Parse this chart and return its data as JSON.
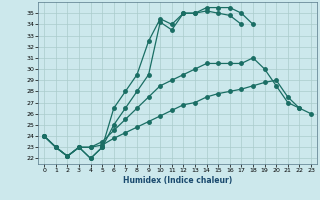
{
  "title": "",
  "xlabel": "Humidex (Indice chaleur)",
  "bg_color": "#cce8ec",
  "grid_color": "#aacccc",
  "line_color": "#1a6e64",
  "ylim": [
    21.5,
    36.0
  ],
  "xlim": [
    -0.5,
    23.5
  ],
  "yticks": [
    22,
    23,
    24,
    25,
    26,
    27,
    28,
    29,
    30,
    31,
    32,
    33,
    34,
    35
  ],
  "xticks": [
    0,
    1,
    2,
    3,
    4,
    5,
    6,
    7,
    8,
    9,
    10,
    11,
    12,
    13,
    14,
    15,
    16,
    17,
    18,
    19,
    20,
    21,
    22,
    23
  ],
  "line1_x": [
    0,
    1,
    2,
    3,
    4,
    5,
    6,
    7,
    8,
    9,
    10,
    11,
    12,
    13,
    14,
    15,
    16,
    17,
    18
  ],
  "line1_y": [
    24.0,
    23.0,
    22.2,
    23.0,
    22.0,
    23.0,
    25.0,
    26.5,
    28.0,
    29.5,
    34.2,
    33.5,
    35.0,
    35.0,
    35.5,
    35.5,
    35.5,
    35.0,
    34.0
  ],
  "line2_x": [
    0,
    1,
    2,
    3,
    4,
    5,
    6,
    7,
    8,
    9,
    10,
    11,
    12,
    13,
    14,
    15,
    16,
    17
  ],
  "line2_y": [
    24.0,
    23.0,
    22.2,
    23.0,
    22.0,
    23.0,
    26.5,
    28.0,
    29.5,
    32.5,
    34.5,
    34.0,
    35.0,
    35.0,
    35.2,
    35.0,
    34.8,
    34.0
  ],
  "line3_x": [
    0,
    1,
    2,
    3,
    4,
    5,
    6,
    7,
    8,
    9,
    10,
    11,
    12,
    13,
    14,
    15,
    16,
    17,
    18,
    19,
    20,
    21,
    22
  ],
  "line3_y": [
    24.0,
    23.0,
    22.2,
    23.0,
    23.0,
    23.5,
    24.5,
    25.5,
    26.5,
    27.5,
    28.5,
    29.0,
    29.5,
    30.0,
    30.5,
    30.5,
    30.5,
    30.5,
    31.0,
    30.0,
    28.5,
    27.0,
    26.5
  ],
  "line4_x": [
    0,
    1,
    2,
    3,
    4,
    5,
    6,
    7,
    8,
    9,
    10,
    11,
    12,
    13,
    14,
    15,
    16,
    17,
    18,
    19,
    20,
    21,
    22,
    23
  ],
  "line4_y": [
    24.0,
    23.0,
    22.2,
    23.0,
    23.0,
    23.2,
    23.8,
    24.3,
    24.8,
    25.3,
    25.8,
    26.3,
    26.8,
    27.0,
    27.5,
    27.8,
    28.0,
    28.2,
    28.5,
    28.8,
    29.0,
    27.5,
    26.5,
    26.0
  ]
}
